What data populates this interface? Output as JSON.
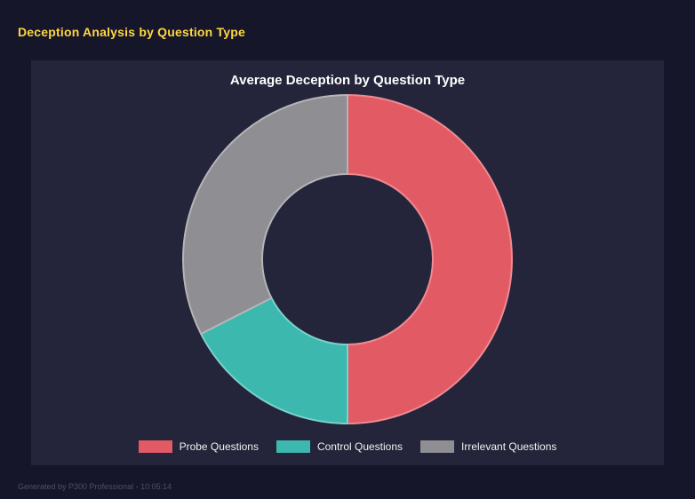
{
  "page": {
    "title": "Deception Analysis by Question Type",
    "footer": "Generated by P300 Professional - 10:05:14"
  },
  "chart_data": {
    "type": "pie",
    "donut": true,
    "title": "Average Deception by Question Type",
    "labels": [
      "Probe Questions",
      "Control Questions",
      "Irrelevant Questions"
    ],
    "values": [
      50,
      17.5,
      32.5
    ],
    "colors": [
      "#e25b64",
      "#3db8af",
      "#8e8e93"
    ],
    "border_colors": [
      "#ef8a92",
      "#79d2cb",
      "#b5b5b8"
    ],
    "start_angle_deg": 0,
    "direction": "clockwise",
    "hole_ratio": 0.52,
    "legend_position": "bottom",
    "background_color": "#24243a"
  }
}
